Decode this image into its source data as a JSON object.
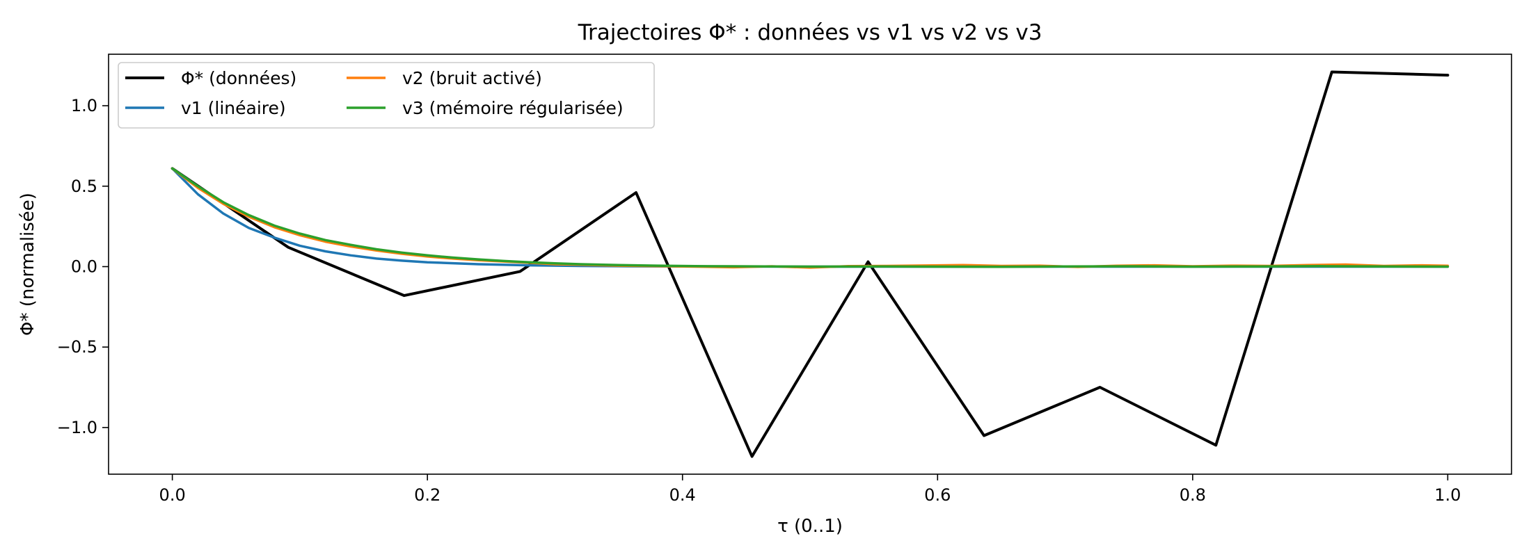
{
  "chart_data": {
    "type": "line",
    "title": "Trajectoires Φ* : données vs v1 vs v2 vs v3",
    "xlabel": "τ (0..1)",
    "ylabel": "Φ* (normalisée)",
    "xlim": [
      -0.05,
      1.05
    ],
    "ylim": [
      -1.29,
      1.32
    ],
    "xticks": [
      0.0,
      0.2,
      0.4,
      0.6,
      0.8,
      1.0
    ],
    "xtick_labels": [
      "0.0",
      "0.2",
      "0.4",
      "0.6",
      "0.8",
      "1.0"
    ],
    "yticks": [
      -1.0,
      -0.5,
      0.0,
      0.5,
      1.0
    ],
    "ytick_labels": [
      "−1.0",
      "−0.5",
      "0.0",
      "0.5",
      "1.0"
    ],
    "grid": false,
    "legend": {
      "placement": "top-left",
      "columns": 2
    },
    "series": [
      {
        "name": "Φ* (données)",
        "color": "#000000",
        "x": [
          0.0,
          0.0909,
          0.1818,
          0.2727,
          0.3636,
          0.4545,
          0.5455,
          0.6364,
          0.7273,
          0.8182,
          0.9091,
          1.0
        ],
        "y": [
          0.61,
          0.12,
          -0.18,
          -0.03,
          0.46,
          -1.18,
          0.03,
          -1.05,
          -0.75,
          -1.11,
          1.21,
          1.19
        ]
      },
      {
        "name": "v1 (linéaire)",
        "color": "#1f77b4",
        "x": [
          0.0,
          0.02,
          0.04,
          0.06,
          0.08,
          0.1,
          0.12,
          0.14,
          0.16,
          0.18,
          0.2,
          0.24,
          0.28,
          0.32,
          0.36,
          0.4,
          0.5,
          0.6,
          0.7,
          0.8,
          0.9,
          1.0
        ],
        "y": [
          0.61,
          0.45,
          0.33,
          0.24,
          0.18,
          0.13,
          0.095,
          0.07,
          0.05,
          0.037,
          0.027,
          0.015,
          0.008,
          0.004,
          0.002,
          0.001,
          0.0,
          0.0,
          0.0,
          0.0,
          0.0,
          0.0
        ]
      },
      {
        "name": "v2 (bruit activé)",
        "color": "#ff7f0e",
        "x": [
          0.0,
          0.02,
          0.04,
          0.06,
          0.08,
          0.1,
          0.12,
          0.14,
          0.16,
          0.18,
          0.2,
          0.22,
          0.24,
          0.26,
          0.28,
          0.3,
          0.32,
          0.35,
          0.38,
          0.41,
          0.44,
          0.47,
          0.5,
          0.53,
          0.56,
          0.59,
          0.62,
          0.65,
          0.68,
          0.71,
          0.74,
          0.77,
          0.8,
          0.83,
          0.86,
          0.89,
          0.92,
          0.95,
          0.98,
          1.0
        ],
        "y": [
          0.61,
          0.49,
          0.39,
          0.31,
          0.245,
          0.195,
          0.155,
          0.125,
          0.1,
          0.08,
          0.063,
          0.05,
          0.04,
          0.032,
          0.024,
          0.015,
          0.012,
          0.006,
          0.003,
          0.0,
          -0.004,
          0.002,
          -0.006,
          0.003,
          0.004,
          0.007,
          0.01,
          0.004,
          0.006,
          -0.002,
          0.005,
          0.008,
          0.002,
          0.006,
          0.004,
          0.01,
          0.013,
          0.004,
          0.008,
          0.005
        ]
      },
      {
        "name": "v3 (mémoire régularisée)",
        "color": "#2ca02c",
        "x": [
          0.0,
          0.02,
          0.04,
          0.06,
          0.08,
          0.1,
          0.12,
          0.14,
          0.16,
          0.18,
          0.2,
          0.22,
          0.24,
          0.26,
          0.28,
          0.3,
          0.32,
          0.35,
          0.38,
          0.41,
          0.44,
          0.47,
          0.5,
          0.55,
          0.6,
          0.65,
          0.7,
          0.75,
          0.8,
          0.85,
          0.9,
          0.95,
          1.0
        ],
        "y": [
          0.61,
          0.5,
          0.4,
          0.32,
          0.255,
          0.205,
          0.165,
          0.135,
          0.108,
          0.087,
          0.07,
          0.056,
          0.045,
          0.035,
          0.027,
          0.02,
          0.015,
          0.01,
          0.006,
          0.003,
          0.002,
          0.001,
          0.0,
          0.001,
          0.0,
          -0.001,
          0.001,
          0.002,
          0.0,
          0.001,
          0.003,
          0.001,
          0.0
        ]
      }
    ]
  }
}
